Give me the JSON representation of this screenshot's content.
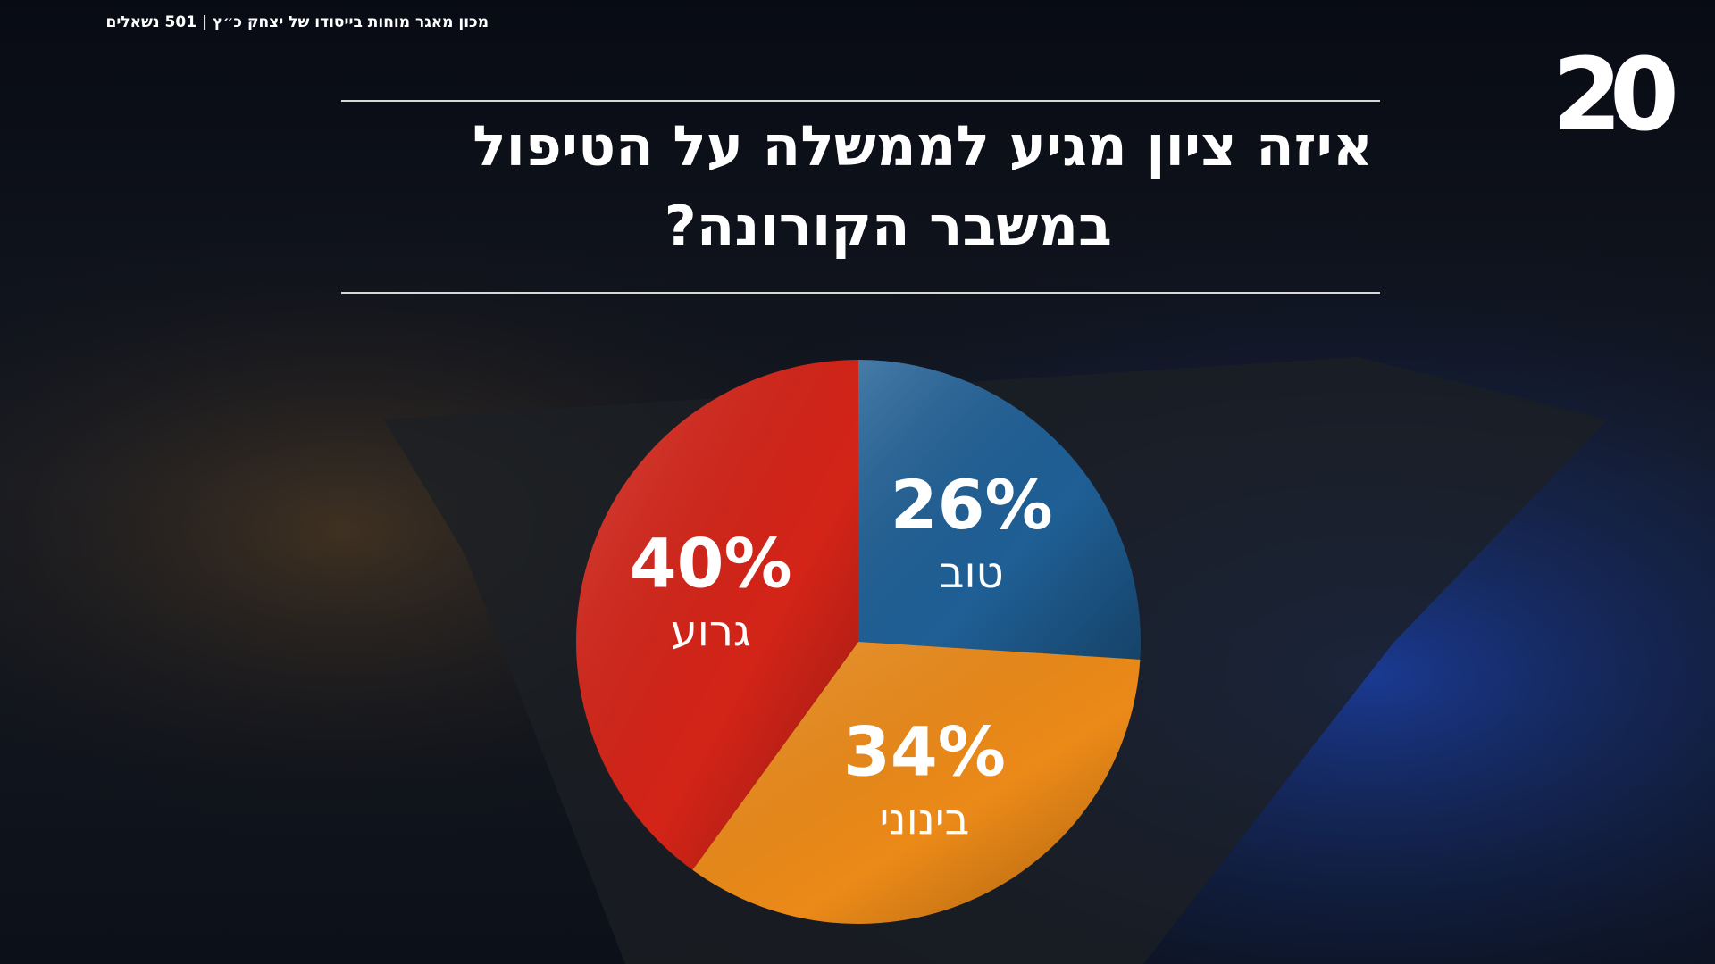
{
  "source": "מכון מאגר מוחות בייסודו של יצחק כ״ץ | 501 נשאלים",
  "logo": "20",
  "chart_data": {
    "type": "pie",
    "title": [
      "איזה ציון מגיע לממשלה על הטיפול",
      "במשבר הקורונה?"
    ],
    "categories": [
      "טוב",
      "בינוני",
      "גרוע"
    ],
    "values": [
      26,
      34,
      40
    ],
    "value_labels": [
      "26%",
      "34%",
      "40%"
    ],
    "colors": [
      "#1f5f95",
      "#ec8a18",
      "#d42418"
    ]
  }
}
